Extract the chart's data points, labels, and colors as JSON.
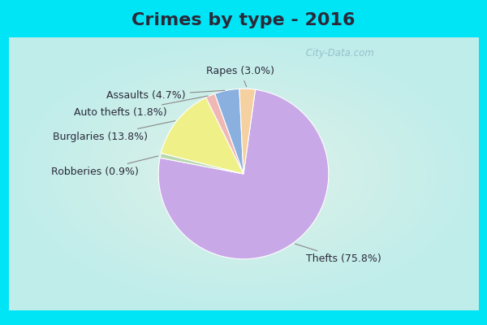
{
  "title": "Crimes by type - 2016",
  "slices": [
    {
      "label": "Thefts",
      "pct": 75.8,
      "color": "#c9a8e8"
    },
    {
      "label": "Robberies",
      "pct": 0.9,
      "color": "#b8d8b0"
    },
    {
      "label": "Burglaries",
      "pct": 13.8,
      "color": "#f0f088"
    },
    {
      "label": "Auto thefts",
      "pct": 1.8,
      "color": "#f0b8b4"
    },
    {
      "label": "Assaults",
      "pct": 4.7,
      "color": "#8ab0e0"
    },
    {
      "label": "Rapes",
      "pct": 3.0,
      "color": "#f5d0a0"
    }
  ],
  "background_cyan": "#00e5f5",
  "background_center": "#e0f0e8",
  "title_fontsize": 16,
  "label_fontsize": 9,
  "watermark": " City-Data.com",
  "title_color": "#2a2a3a",
  "label_color": "#2a2a3a",
  "top_bar_height": 0.115,
  "bottom_bar_height": 0.045,
  "side_bar_width": 0.018
}
